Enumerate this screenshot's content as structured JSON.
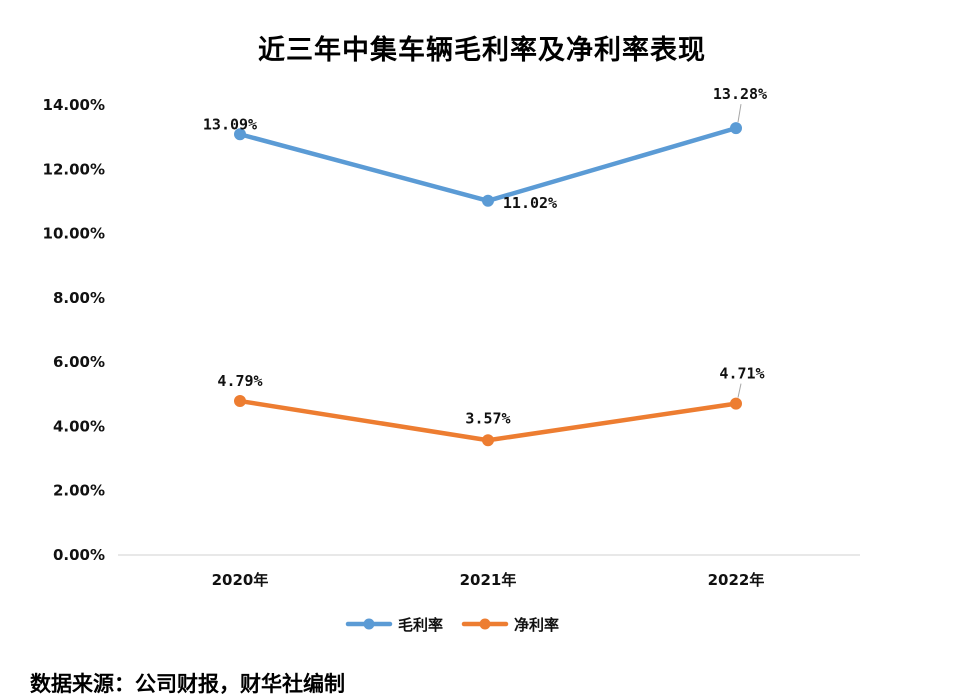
{
  "chart_data": {
    "type": "line",
    "title": "近三年中集车辆毛利率及净利率表现",
    "categories": [
      "2020年",
      "2021年",
      "2022年"
    ],
    "series": [
      {
        "name": "毛利率",
        "values": [
          13.09,
          11.02,
          13.28
        ],
        "labels": [
          "13.09%",
          "11.02%",
          "13.28%"
        ],
        "color": "#5B9BD5"
      },
      {
        "name": "净利率",
        "values": [
          4.79,
          3.57,
          4.71
        ],
        "labels": [
          "4.79%",
          "3.57%",
          "4.71%"
        ],
        "color": "#ED7D31"
      }
    ],
    "yticks": [
      "0.00%",
      "2.00%",
      "4.00%",
      "6.00%",
      "8.00%",
      "10.00%",
      "12.00%",
      "14.00%"
    ],
    "ylim": [
      0,
      14
    ],
    "grid": false,
    "legend": "bottom"
  },
  "source_note": "数据来源：公司财报，财华社编制"
}
